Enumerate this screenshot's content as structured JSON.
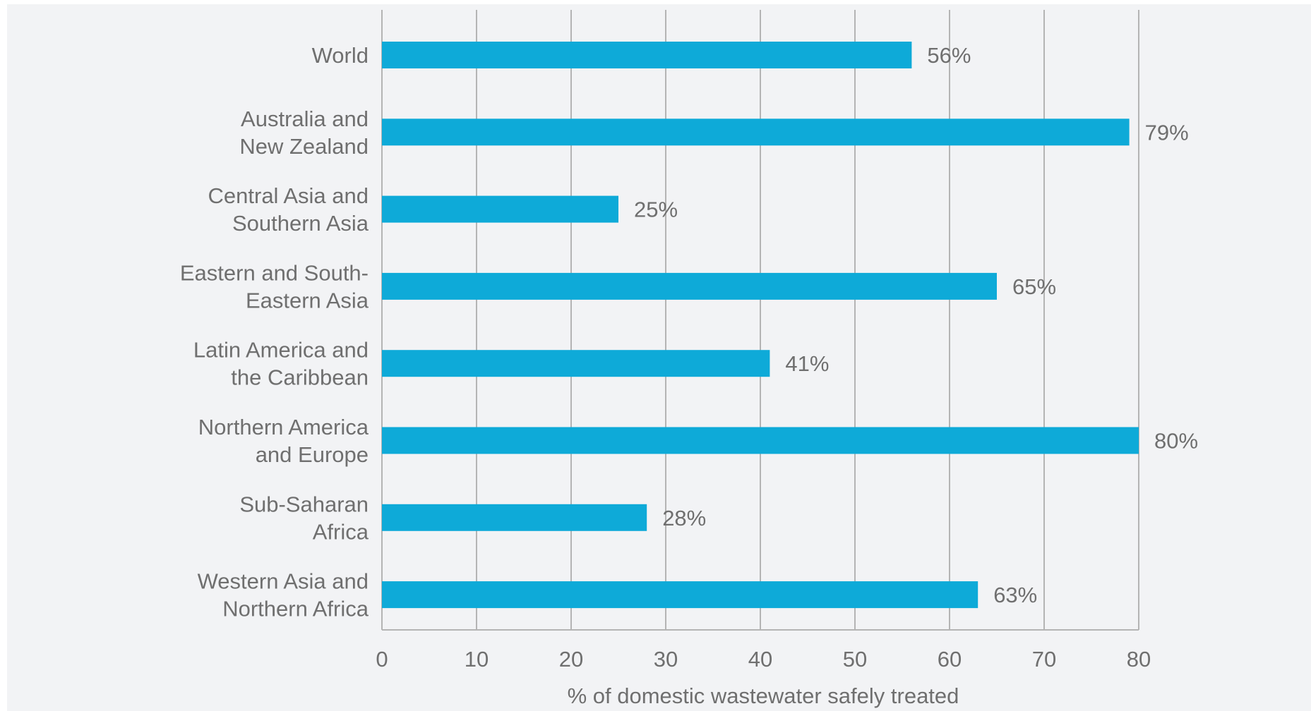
{
  "chart_data": {
    "type": "bar",
    "orientation": "horizontal",
    "categories": [
      [
        "World"
      ],
      [
        "Australia and",
        "New Zealand"
      ],
      [
        "Central Asia and",
        "Southern Asia"
      ],
      [
        "Eastern and South-",
        "Eastern Asia"
      ],
      [
        "Latin America and",
        "the Caribbean"
      ],
      [
        "Northern America",
        "and Europe"
      ],
      [
        "Sub-Saharan",
        "Africa"
      ],
      [
        "Western Asia and",
        "Northern Africa"
      ]
    ],
    "values": [
      56,
      79,
      25,
      65,
      41,
      80,
      28,
      63
    ],
    "value_labels": [
      "56%",
      "79%",
      "25%",
      "65%",
      "41%",
      "80%",
      "28%",
      "63%"
    ],
    "xlabel": "% of domestic wastewater safely treated",
    "ylabel": "",
    "xlim": [
      0,
      80
    ],
    "xticks": [
      0,
      10,
      20,
      30,
      40,
      50,
      60,
      70,
      80
    ],
    "grid": "vertical",
    "legend": "none",
    "colors": {
      "bar": "#0eaad8",
      "grid": "#b4b4b4",
      "text": "#6f6f6f",
      "background": "#f2f3f5"
    }
  }
}
